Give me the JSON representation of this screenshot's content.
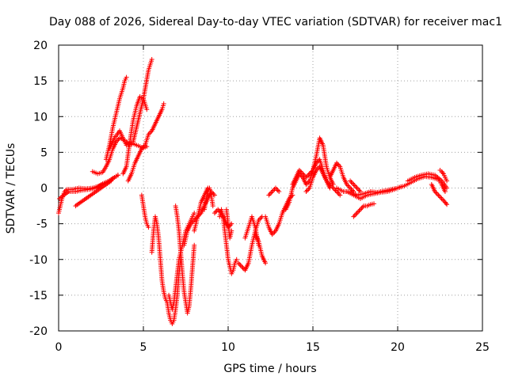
{
  "chart_data": {
    "type": "scatter",
    "title": "Day 088 of 2026, Sidereal Day-to-day VTEC variation (SDTVAR) for receiver mac1",
    "xlabel": "GPS time / hours",
    "ylabel": "SDTVAR / TECUs",
    "xlim": [
      0,
      25
    ],
    "ylim": [
      -20,
      20
    ],
    "xticks": [
      0,
      5,
      10,
      15,
      20,
      25
    ],
    "yticks": [
      -20,
      -15,
      -10,
      -5,
      0,
      5,
      10,
      15,
      20
    ],
    "xtick_labels": [
      "0",
      "5",
      "10",
      "15",
      "20",
      "25"
    ],
    "ytick_labels": [
      "-20",
      "-15",
      "-10",
      "-5",
      "0",
      "5",
      "10",
      "15",
      "20"
    ],
    "grid": true,
    "marker": "+",
    "series": [
      {
        "name": "SDTVAR",
        "color": "#ff0000",
        "segments": [
          {
            "x": [
              0.0,
              0.1,
              0.2,
              0.35,
              0.5,
              0.8,
              1.2,
              1.6,
              2.0,
              2.4,
              2.8,
              3.1,
              3.3,
              3.5
            ],
            "y": [
              -3.5,
              -2.5,
              -1.5,
              -0.5,
              -0.2,
              -0.2,
              0.0,
              -0.1,
              0.0,
              0.3,
              0.8,
              1.2,
              1.5,
              1.8
            ]
          },
          {
            "x": [
              0.05,
              0.3,
              0.6,
              1.0,
              1.4,
              1.8,
              2.2,
              2.6,
              3.0,
              3.3,
              3.5
            ],
            "y": [
              -1.5,
              -1.0,
              -0.5,
              -0.5,
              -0.3,
              -0.2,
              0.0,
              0.6,
              1.0,
              1.5,
              1.8
            ]
          },
          {
            "x": [
              1.0,
              1.3,
              1.6,
              1.9,
              2.2,
              2.5,
              2.8,
              3.1
            ],
            "y": [
              -2.5,
              -2.0,
              -1.5,
              -1.0,
              -0.5,
              0.0,
              0.5,
              1.0
            ]
          },
          {
            "x": [
              2.0,
              2.3,
              2.6,
              2.8,
              3.0,
              3.2,
              3.4,
              3.6,
              3.8,
              4.0,
              4.2,
              4.4,
              4.6,
              4.8,
              5.0,
              5.2
            ],
            "y": [
              2.3,
              2.0,
              2.2,
              3.0,
              4.0,
              5.5,
              6.5,
              7.0,
              6.8,
              6.5,
              6.0,
              6.2,
              6.0,
              5.8,
              5.6,
              5.8
            ]
          },
          {
            "x": [
              2.8,
              3.0,
              3.2,
              3.4,
              3.6,
              3.8,
              3.9,
              4.0
            ],
            "y": [
              4.0,
              6.0,
              8.5,
              10.5,
              12.5,
              14.0,
              15.0,
              15.5
            ]
          },
          {
            "x": [
              3.0,
              3.3,
              3.6,
              4.0,
              4.4,
              4.7,
              5.0,
              5.3,
              5.5
            ],
            "y": [
              5.5,
              7.0,
              8.0,
              6.0,
              6.5,
              9.5,
              12.5,
              16.5,
              18.0
            ]
          },
          {
            "x": [
              3.8,
              4.0,
              4.2,
              4.4,
              4.6,
              4.8,
              5.0,
              5.2
            ],
            "y": [
              2.0,
              3.0,
              6.5,
              9.5,
              11.5,
              12.8,
              12.5,
              11.0
            ]
          },
          {
            "x": [
              4.1,
              4.3,
              4.5,
              4.7,
              4.9,
              5.1,
              5.3,
              5.5,
              5.7,
              5.9,
              6.1,
              6.2
            ],
            "y": [
              1.0,
              2.0,
              3.5,
              4.5,
              5.5,
              6.0,
              7.5,
              8.0,
              9.0,
              10.0,
              11.0,
              11.8
            ]
          },
          {
            "x": [
              4.9,
              5.0,
              5.1,
              5.2,
              5.3
            ],
            "y": [
              -1.0,
              -2.5,
              -4.0,
              -5.0,
              -5.5
            ]
          },
          {
            "x": [
              5.5,
              5.6,
              5.7,
              5.8,
              5.9,
              6.0,
              6.1,
              6.2,
              6.3,
              6.4,
              6.5,
              6.6,
              6.7,
              6.8,
              6.9,
              7.0,
              7.1,
              7.2
            ],
            "y": [
              -9.0,
              -6.0,
              -4.0,
              -5.0,
              -7.0,
              -10.0,
              -13.0,
              -14.5,
              -15.5,
              -16.0,
              -17.5,
              -18.5,
              -19.0,
              -18.5,
              -17.0,
              -15.0,
              -12.0,
              -10.0
            ]
          },
          {
            "x": [
              6.5,
              6.6,
              6.7,
              6.8,
              6.9,
              7.0,
              7.1,
              7.2,
              7.3,
              7.4,
              7.5,
              7.6,
              7.7,
              7.8,
              7.9,
              8.0
            ],
            "y": [
              -15.0,
              -16.0,
              -17.0,
              -16.0,
              -14.0,
              -12.0,
              -10.0,
              -9.0,
              -8.0,
              -7.0,
              -6.0,
              -5.5,
              -5.0,
              -4.5,
              -4.0,
              -3.5
            ]
          },
          {
            "x": [
              6.9,
              7.0,
              7.1,
              7.2,
              7.3,
              7.4,
              7.5,
              7.6,
              7.7,
              7.8,
              7.9,
              8.0
            ],
            "y": [
              -2.5,
              -4.0,
              -6.0,
              -9.0,
              -12.0,
              -14.5,
              -16.0,
              -17.5,
              -16.5,
              -14.0,
              -11.0,
              -8.0
            ]
          },
          {
            "x": [
              7.4,
              7.6,
              7.8,
              8.0,
              8.2,
              8.4,
              8.6,
              8.8,
              9.0,
              9.2
            ],
            "y": [
              -8.0,
              -6.0,
              -5.0,
              -4.5,
              -4.0,
              -3.5,
              -2.5,
              -1.5,
              -0.5,
              -1.0
            ]
          },
          {
            "x": [
              8.0,
              8.2,
              8.4,
              8.6,
              8.8
            ],
            "y": [
              -6.0,
              -4.0,
              -2.0,
              -1.0,
              0.0
            ]
          },
          {
            "x": [
              8.6,
              8.7,
              8.8,
              8.9,
              9.0,
              9.1
            ],
            "y": [
              -3.0,
              -1.5,
              -0.5,
              0.0,
              -1.0,
              -2.5
            ]
          },
          {
            "x": [
              9.2,
              9.4,
              9.6,
              9.8,
              10.0,
              10.2
            ],
            "y": [
              -3.5,
              -3.0,
              -3.5,
              -4.5,
              -5.5,
              -5.0
            ]
          },
          {
            "x": [
              9.5,
              9.6,
              9.7,
              9.8,
              9.9,
              10.0,
              10.1,
              10.2,
              10.3,
              10.4,
              10.5
            ],
            "y": [
              -4.0,
              -3.0,
              -4.0,
              -6.0,
              -8.0,
              -10.0,
              -11.0,
              -12.0,
              -11.5,
              -10.5,
              -10.0
            ]
          },
          {
            "x": [
              9.9,
              10.0,
              10.1,
              10.2
            ],
            "y": [
              -3.0,
              -5.0,
              -7.0,
              -6.0
            ]
          },
          {
            "x": [
              10.6,
              10.8,
              11.0,
              11.2,
              11.4,
              11.6,
              11.8,
              12.0
            ],
            "y": [
              -10.5,
              -11.0,
              -11.5,
              -10.5,
              -8.0,
              -6.0,
              -4.5,
              -4.0
            ]
          },
          {
            "x": [
              11.0,
              11.2,
              11.4,
              11.6,
              11.8
            ],
            "y": [
              -7.0,
              -5.5,
              -4.0,
              -5.5,
              -8.0
            ]
          },
          {
            "x": [
              11.6,
              11.8,
              12.0,
              12.2
            ],
            "y": [
              -6.5,
              -7.5,
              -9.5,
              -10.5
            ]
          },
          {
            "x": [
              12.2,
              12.4,
              12.6,
              12.8,
              13.0,
              13.2,
              13.4,
              13.6,
              13.8
            ],
            "y": [
              -4.0,
              -5.5,
              -6.5,
              -6.0,
              -5.0,
              -3.5,
              -2.5,
              -1.5,
              -1.0
            ]
          },
          {
            "x": [
              12.4,
              12.6,
              12.8,
              13.0
            ],
            "y": [
              -1.0,
              -0.5,
              0.0,
              -0.5
            ]
          },
          {
            "x": [
              13.4,
              13.6,
              13.8,
              14.0,
              14.2,
              14.4,
              14.6,
              14.8,
              15.0,
              15.2,
              15.4,
              15.6,
              15.8,
              16.0
            ],
            "y": [
              -3.0,
              -2.0,
              0.0,
              1.0,
              2.0,
              1.5,
              0.5,
              1.0,
              2.5,
              3.5,
              4.0,
              2.5,
              1.0,
              0.0
            ]
          },
          {
            "x": [
              13.8,
              14.0,
              14.2,
              14.4,
              14.6,
              14.8,
              15.0,
              15.2,
              15.4,
              15.6,
              15.8,
              16.0,
              16.2
            ],
            "y": [
              0.5,
              1.5,
              2.5,
              2.0,
              1.5,
              2.0,
              2.5,
              4.5,
              7.0,
              6.0,
              3.0,
              1.5,
              0.5
            ]
          },
          {
            "x": [
              14.6,
              14.8,
              15.0,
              15.2,
              15.4,
              15.6,
              15.8,
              16.0,
              16.2,
              16.4,
              16.6
            ],
            "y": [
              -0.5,
              0.0,
              1.5,
              2.5,
              3.0,
              2.0,
              1.0,
              0.5,
              0.0,
              -0.5,
              -1.0
            ]
          },
          {
            "x": [
              16.0,
              16.2,
              16.4,
              16.6,
              16.8,
              17.0,
              17.2,
              17.4
            ],
            "y": [
              1.5,
              2.5,
              3.5,
              3.0,
              1.5,
              0.5,
              0.0,
              -0.5
            ]
          },
          {
            "x": [
              16.4,
              16.8,
              17.2,
              17.6,
              18.0,
              18.4,
              18.8,
              19.2,
              19.6,
              20.0
            ],
            "y": [
              0.0,
              -0.5,
              -0.5,
              -1.0,
              -0.8,
              -0.5,
              -0.6,
              -0.4,
              -0.2,
              0.0
            ]
          },
          {
            "x": [
              17.0,
              17.4,
              17.8,
              18.2,
              18.6,
              19.0,
              19.4,
              19.8,
              20.2
            ],
            "y": [
              -0.5,
              -1.0,
              -1.5,
              -1.0,
              -0.8,
              -0.6,
              -0.5,
              -0.2,
              0.2
            ]
          },
          {
            "x": [
              17.4,
              17.6,
              17.8,
              18.0,
              18.2,
              18.4,
              18.6
            ],
            "y": [
              -4.0,
              -3.5,
              -3.0,
              -2.5,
              -2.5,
              -2.3,
              -2.2
            ]
          },
          {
            "x": [
              17.2,
              17.4,
              17.6,
              17.8
            ],
            "y": [
              1.0,
              0.5,
              0.0,
              -0.5
            ]
          },
          {
            "x": [
              20.0,
              20.4,
              20.8,
              21.2,
              21.6,
              22.0,
              22.4,
              22.6,
              22.8
            ],
            "y": [
              0.0,
              0.3,
              0.8,
              1.3,
              1.6,
              1.5,
              1.2,
              0.5,
              -0.5
            ]
          },
          {
            "x": [
              20.6,
              21.0,
              21.4,
              21.8,
              22.2,
              22.6,
              22.9
            ],
            "y": [
              1.0,
              1.5,
              1.8,
              2.0,
              1.8,
              1.0,
              0.0
            ]
          },
          {
            "x": [
              22.0,
              22.2,
              22.4,
              22.6,
              22.8,
              22.9
            ],
            "y": [
              0.5,
              -0.5,
              -1.0,
              -1.5,
              -2.0,
              -2.3
            ]
          },
          {
            "x": [
              22.5,
              22.6,
              22.7,
              22.8,
              22.9
            ],
            "y": [
              2.5,
              2.3,
              2.0,
              1.5,
              1.0
            ]
          }
        ]
      }
    ]
  }
}
